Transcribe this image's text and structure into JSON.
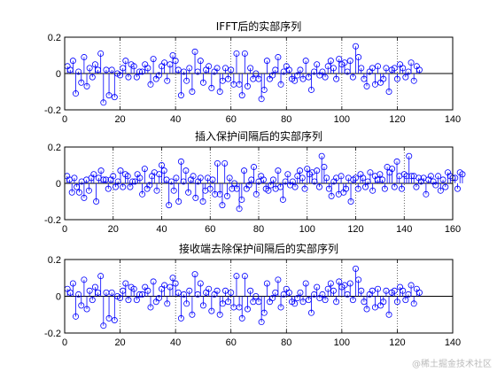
{
  "watermark": "@稀土掘金技术社区",
  "chart_data": [
    {
      "type": "stem",
      "title": "IFFT后的实部序列",
      "xlim": [
        0,
        140
      ],
      "ylim": [
        -0.2,
        0.2
      ],
      "xticks": [
        0,
        20,
        40,
        60,
        80,
        100,
        120,
        140
      ],
      "yticks": [
        -0.2,
        0,
        0.2
      ],
      "grid": "dotted",
      "x_start": 1,
      "values": [
        0.04,
        0.02,
        0.07,
        -0.11,
        0.01,
        -0.05,
        0.09,
        -0.07,
        0.03,
        -0.02,
        0.05,
        0.02,
        0.11,
        -0.16,
        0.02,
        -0.12,
        0.02,
        -0.13,
        0.0,
        -0.01,
        0.03,
        0.07,
        -0.02,
        0.05,
        0.04,
        -0.02,
        0.01,
        0.01,
        0.05,
        0.03,
        -0.06,
        0.08,
        -0.03,
        -0.01,
        0.04,
        0.06,
        -0.04,
        0.05,
        0.1,
        0.07,
        0.02,
        -0.12,
        0.01,
        -0.04,
        0.03,
        -0.1,
        0.12,
        0.01,
        0.07,
        -0.05,
        0.02,
        0.04,
        -0.08,
        0.01,
        0.03,
        -0.1,
        -0.04,
        0.03,
        -0.03,
        0.02,
        -0.06,
        0.11,
        -0.06,
        -0.12,
        0.11,
        -0.07,
        0.03,
        -0.03,
        0.0,
        -0.03,
        -0.14,
        -0.09,
        0.07,
        -0.03,
        -0.01,
        0.02,
        0.09,
        -0.06,
        0.01,
        0.04,
        0.02,
        -0.03,
        -0.04,
        -0.01,
        0.02,
        -0.03,
        0.07,
        -0.02,
        -0.09,
        0.01,
        0.05,
        -0.01,
        0.01,
        -0.02,
        0.04,
        0.07,
        0.03,
        -0.03,
        0.08,
        0.05,
        0.06,
        0.01,
        0.07,
        -0.02,
        0.15,
        0.09,
        0.03,
        -0.03,
        -0.07,
        0.01,
        0.03,
        -0.06,
        0.04,
        -0.05,
        -0.03,
        0.03,
        -0.1,
        0.02,
        0.03,
        -0.03,
        0.05,
        0.03,
        -0.02,
        0.01,
        0.06,
        -0.04,
        0.04,
        0.02
      ]
    },
    {
      "type": "stem",
      "title": "插入保护间隔后的实部序列",
      "xlim": [
        0,
        160
      ],
      "ylim": [
        -0.2,
        0.2
      ],
      "xticks": [
        0,
        20,
        40,
        60,
        80,
        100,
        120,
        140,
        160
      ],
      "yticks": [
        -0.2,
        0,
        0.2
      ],
      "grid": "dotted",
      "x_start": 1,
      "values": [
        0.04,
        0.02,
        -0.05,
        0.03,
        -0.02,
        -0.05,
        0.01,
        -0.08,
        0.02,
        -0.04,
        0.03,
        0.05,
        -0.1,
        0.03,
        0.07,
        0.02,
        0.02,
        -0.03,
        0.02,
        0.04,
        -0.02,
        0.01,
        0.07,
        -0.02,
        0.05,
        0.04,
        -0.02,
        0.01,
        0.01,
        0.05,
        0.03,
        -0.06,
        0.08,
        -0.03,
        -0.01,
        0.04,
        0.06,
        -0.04,
        0.05,
        0.1,
        0.07,
        0.02,
        -0.12,
        0.01,
        -0.04,
        0.03,
        -0.1,
        0.12,
        0.01,
        0.07,
        -0.05,
        0.02,
        0.04,
        -0.08,
        0.01,
        0.03,
        -0.1,
        -0.04,
        0.03,
        -0.03,
        0.02,
        -0.06,
        0.11,
        -0.06,
        -0.12,
        0.11,
        -0.07,
        0.03,
        -0.03,
        0.0,
        -0.03,
        -0.14,
        -0.09,
        0.07,
        -0.03,
        -0.01,
        0.02,
        0.09,
        -0.06,
        0.01,
        0.04,
        0.02,
        -0.03,
        -0.04,
        -0.01,
        0.02,
        -0.03,
        0.07,
        -0.02,
        -0.09,
        0.01,
        0.05,
        -0.01,
        0.01,
        -0.02,
        0.04,
        0.07,
        0.03,
        -0.03,
        0.08,
        0.05,
        0.06,
        0.01,
        0.07,
        -0.02,
        0.15,
        0.09,
        0.03,
        -0.03,
        -0.07,
        0.01,
        0.03,
        -0.06,
        0.04,
        -0.05,
        -0.03,
        0.03,
        -0.1,
        0.02,
        0.03,
        -0.03,
        0.05,
        0.03,
        -0.02,
        0.01,
        0.06,
        -0.04,
        0.04,
        0.02,
        0.05,
        0.02,
        -0.03,
        0.09,
        0.06,
        0.08,
        -0.02,
        0.12,
        0.04,
        -0.03,
        0.05,
        0.04,
        0.15,
        0.04,
        0.04,
        -0.02,
        0.03,
        0.01,
        0.03,
        -0.06,
        0.02,
        0.04,
        0.01,
        -0.01,
        0.04,
        -0.04,
        0.02,
        -0.02,
        0.06,
        0.04,
        0.03,
        0.03,
        -0.03,
        0.06,
        0.05
      ]
    },
    {
      "type": "stem",
      "title": "接收端去除保护间隔后的实部序列",
      "xlim": [
        0,
        140
      ],
      "ylim": [
        -0.2,
        0.2
      ],
      "xticks": [
        0,
        20,
        40,
        60,
        80,
        100,
        120,
        140
      ],
      "yticks": [
        -0.2,
        0,
        0.2
      ],
      "grid": "dotted",
      "x_start": 1,
      "values": [
        0.04,
        0.02,
        0.07,
        -0.11,
        0.01,
        -0.05,
        0.09,
        -0.07,
        0.03,
        -0.02,
        0.05,
        0.02,
        0.11,
        -0.16,
        0.02,
        -0.12,
        0.02,
        -0.13,
        0.0,
        -0.01,
        0.03,
        0.07,
        -0.02,
        0.05,
        0.04,
        -0.02,
        0.01,
        0.01,
        0.05,
        0.03,
        -0.06,
        0.08,
        -0.03,
        -0.01,
        0.04,
        0.06,
        -0.04,
        0.05,
        0.1,
        0.07,
        0.02,
        -0.12,
        0.01,
        -0.04,
        0.03,
        -0.1,
        0.12,
        0.01,
        0.07,
        -0.05,
        0.02,
        0.04,
        -0.08,
        0.01,
        0.03,
        -0.1,
        -0.04,
        0.03,
        -0.03,
        0.02,
        -0.06,
        0.11,
        -0.06,
        -0.12,
        0.11,
        -0.07,
        0.03,
        -0.03,
        0.0,
        -0.03,
        -0.14,
        -0.09,
        0.07,
        -0.03,
        -0.01,
        0.02,
        0.09,
        -0.06,
        0.01,
        0.04,
        0.02,
        -0.03,
        -0.04,
        -0.01,
        0.02,
        -0.03,
        0.07,
        -0.02,
        -0.09,
        0.01,
        0.05,
        -0.01,
        0.01,
        -0.02,
        0.04,
        0.07,
        0.03,
        -0.03,
        0.08,
        0.05,
        0.06,
        0.01,
        0.07,
        -0.02,
        0.15,
        0.09,
        0.03,
        -0.03,
        -0.07,
        0.01,
        0.03,
        -0.06,
        0.04,
        -0.05,
        -0.03,
        0.03,
        -0.1,
        0.02,
        0.03,
        -0.03,
        0.05,
        0.03,
        -0.02,
        0.01,
        0.06,
        -0.04,
        0.04,
        0.02
      ]
    }
  ],
  "colors": {
    "stem": "#0000ff",
    "baseline": "#000000",
    "grid": "#000000"
  }
}
